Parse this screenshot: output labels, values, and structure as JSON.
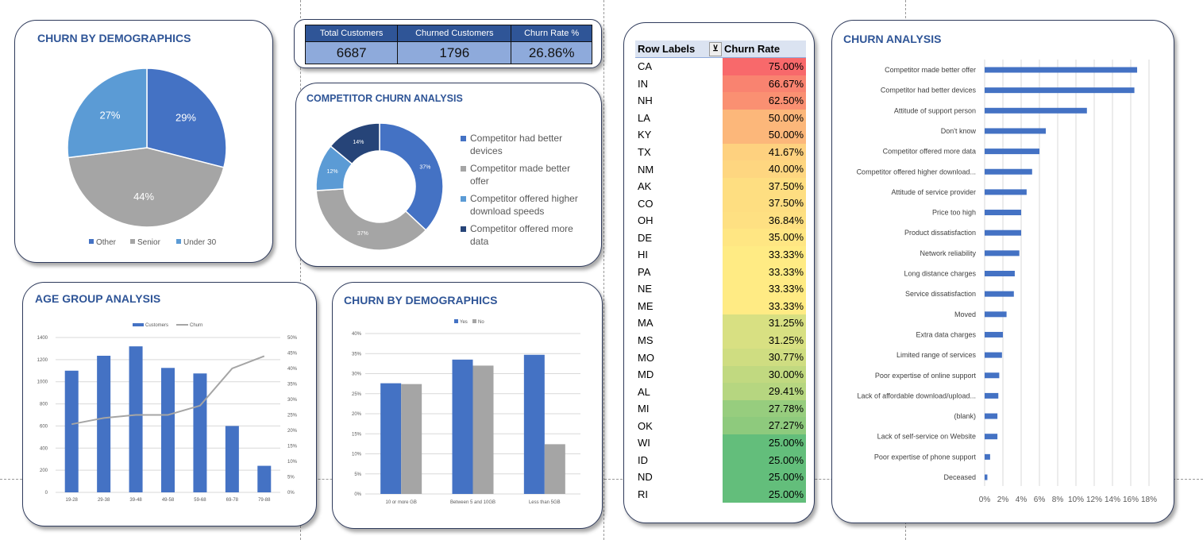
{
  "kpi": {
    "headers": [
      "Total Customers",
      "Churned Customers",
      "Churn Rate %"
    ],
    "values": [
      "6687",
      "1796",
      "26.86%"
    ]
  },
  "demographics_pie": {
    "title": "CHURN BY DEMOGRAPHICS",
    "chart_data": {
      "type": "pie",
      "labels": [
        "Other",
        "Senior",
        "Under 30"
      ],
      "values": [
        29,
        44,
        27
      ],
      "data_labels": [
        "29%",
        "44%",
        "27%"
      ],
      "colors": [
        "#4472C4",
        "#A5A5A5",
        "#5B9BD5"
      ],
      "legend": "bottom"
    }
  },
  "competitor": {
    "title": "COMPETITOR CHURN ANALYSIS",
    "chart_data": {
      "type": "pie",
      "donut": true,
      "labels": [
        "Competitor had better devices",
        "Competitor made better offer",
        "Competitor offered higher download speeds",
        "Competitor offered more data"
      ],
      "values": [
        37,
        37,
        12,
        14
      ],
      "data_labels": [
        "37%",
        "37%",
        "12%",
        "14%"
      ],
      "colors": [
        "#4472C4",
        "#A5A5A5",
        "#5B9BD5",
        "#264478"
      ],
      "legend": "right"
    }
  },
  "age": {
    "title": "AGE GROUP ANALYSIS",
    "chart_data": {
      "type": "bar",
      "categories": [
        "19-28",
        "29-38",
        "39-48",
        "49-58",
        "59-68",
        "69-78",
        "79-88"
      ],
      "series": [
        {
          "name": "Customers",
          "type": "bar",
          "values": [
            1100,
            1235,
            1320,
            1125,
            1075,
            600,
            240
          ],
          "color": "#4472C4"
        },
        {
          "name": "Churn",
          "type": "line",
          "axis": "secondary",
          "values": [
            0.22,
            0.24,
            0.25,
            0.25,
            0.28,
            0.4,
            0.44
          ],
          "color": "#A5A5A5"
        }
      ],
      "ylim": [
        0,
        1400
      ],
      "yticks": [
        "0",
        "200",
        "400",
        "600",
        "800",
        "1000",
        "1200",
        "1400"
      ],
      "y2lim": [
        0,
        0.5
      ],
      "y2ticks": [
        "0%",
        "5%",
        "10%",
        "15%",
        "20%",
        "25%",
        "30%",
        "35%",
        "40%",
        "45%",
        "50%"
      ],
      "legend": "top",
      "grid": true
    }
  },
  "data_churn": {
    "title": "CHURN BY DEMOGRAPHICS",
    "chart_data": {
      "type": "bar",
      "categories": [
        "10 or more GB",
        "Between 5 and 10GB",
        "Less than 5GB"
      ],
      "series": [
        {
          "name": "Yes",
          "values": [
            0.276,
            0.335,
            0.347
          ],
          "color": "#4472C4"
        },
        {
          "name": "No",
          "values": [
            0.274,
            0.32,
            0.124
          ],
          "color": "#A5A5A5"
        }
      ],
      "ylim": [
        0,
        0.4
      ],
      "yticks": [
        "0%",
        "5%",
        "10%",
        "15%",
        "20%",
        "25%",
        "30%",
        "35%",
        "40%"
      ],
      "legend": "top",
      "grid": true
    }
  },
  "states": {
    "headers": [
      "Row Labels",
      "Churn Rate"
    ],
    "rows": [
      [
        "CA",
        "75.00%"
      ],
      [
        "IN",
        "66.67%"
      ],
      [
        "NH",
        "62.50%"
      ],
      [
        "LA",
        "50.00%"
      ],
      [
        "KY",
        "50.00%"
      ],
      [
        "TX",
        "41.67%"
      ],
      [
        "NM",
        "40.00%"
      ],
      [
        "AK",
        "37.50%"
      ],
      [
        "CO",
        "37.50%"
      ],
      [
        "OH",
        "36.84%"
      ],
      [
        "DE",
        "35.00%"
      ],
      [
        "HI",
        "33.33%"
      ],
      [
        "PA",
        "33.33%"
      ],
      [
        "NE",
        "33.33%"
      ],
      [
        "ME",
        "33.33%"
      ],
      [
        "MA",
        "31.25%"
      ],
      [
        "MS",
        "31.25%"
      ],
      [
        "MO",
        "30.77%"
      ],
      [
        "MD",
        "30.00%"
      ],
      [
        "AL",
        "29.41%"
      ],
      [
        "MI",
        "27.78%"
      ],
      [
        "OK",
        "27.27%"
      ],
      [
        "WI",
        "25.00%"
      ],
      [
        "ID",
        "25.00%"
      ],
      [
        "ND",
        "25.00%"
      ],
      [
        "RI",
        "25.00%"
      ]
    ],
    "scale_colors": {
      "min": "#63BE7B",
      "mid": "#FFEB84",
      "max": "#F8696B"
    }
  },
  "churn_analysis": {
    "title": "CHURN ANALYSIS",
    "chart_data": {
      "type": "bar",
      "orientation": "horizontal",
      "categories": [
        "Competitor made better offer",
        "Competitor had better devices",
        "Attitude of support person",
        "Don't know",
        "Competitor offered more data",
        "Competitor offered higher download...",
        "Attitude of service provider",
        "Price too high",
        "Product dissatisfaction",
        "Network reliability",
        "Long distance charges",
        "Service dissatisfaction",
        "Moved",
        "Extra data charges",
        "Limited range of services",
        "Poor expertise of online support",
        "Lack of affordable download/upload...",
        "(blank)",
        "Lack of self-service on Website",
        "Poor expertise of phone support",
        "Deceased"
      ],
      "values": [
        16.7,
        16.4,
        11.2,
        6.7,
        6.0,
        5.2,
        4.6,
        4.0,
        4.0,
        3.8,
        3.3,
        3.2,
        2.4,
        2.0,
        1.9,
        1.6,
        1.5,
        1.4,
        1.4,
        0.6,
        0.3
      ],
      "xlim": [
        0,
        18
      ],
      "xticks": [
        "0%",
        "2%",
        "4%",
        "6%",
        "8%",
        "10%",
        "12%",
        "14%",
        "16%",
        "18%"
      ],
      "color": "#4472C4",
      "grid": true
    }
  }
}
